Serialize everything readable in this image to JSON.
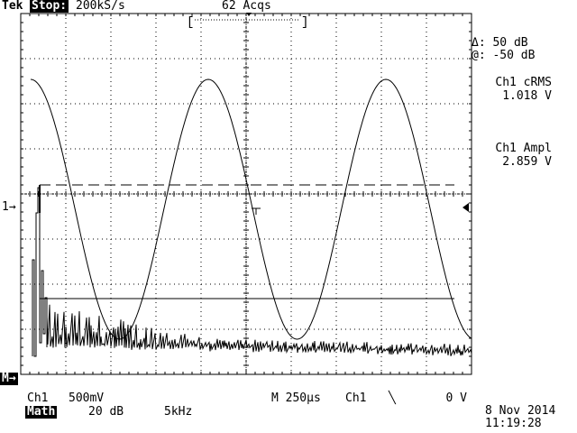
{
  "header": {
    "brand": "Tek",
    "run_state": "Stop:",
    "sample_rate": "200kS/s",
    "acquisitions": "62 Acqs"
  },
  "cursor_readout": {
    "delta": "Δ: 50 dB",
    "at": "@: -50 dB"
  },
  "measurements": [
    {
      "label": "Ch1 cRMS",
      "value": "1.018 V"
    },
    {
      "label": "Ch1 Ampl",
      "value": "2.859 V"
    }
  ],
  "markers": {
    "ch1_ground": "1→",
    "math_marker": "M→"
  },
  "footer": {
    "ch1_label": "Ch1",
    "ch1_scale": "500mV",
    "timebase": "M 250µs",
    "trigger_source": "Ch1",
    "trigger_slope": "╲",
    "trigger_level": "0 V",
    "math_label": "Math",
    "math_scale": "20 dB",
    "math_freq": "5kHz",
    "date": "8 Nov 2014",
    "time": "11:19:28"
  },
  "colors": {
    "trace": "#000000",
    "background": "#ffffff"
  }
}
